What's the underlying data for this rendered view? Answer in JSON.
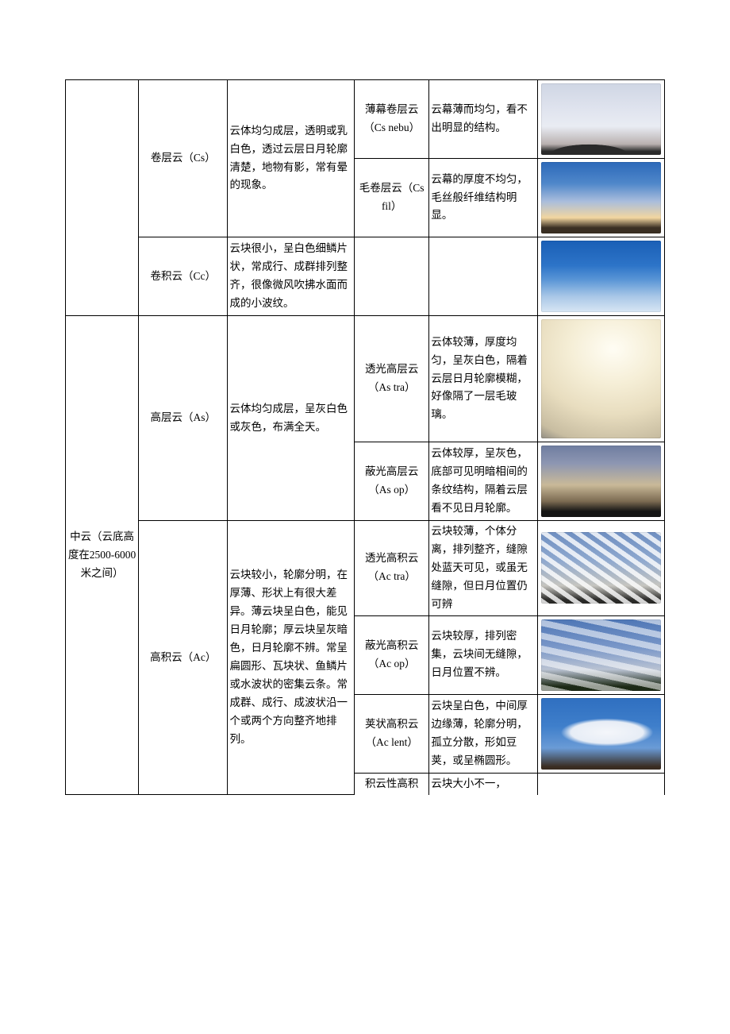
{
  "category_mid": "中云（云底高度在2500-6000米之间）",
  "rows": [
    {
      "type": "卷层云（Cs）",
      "type_desc": "云体均匀成层，透明或乳白色，透过云层日月轮廓清楚，地物有影，常有晕的现象。",
      "sub": "薄幕卷层云（Cs nebu）",
      "sub_desc": "云幕薄而均匀，看不出明显的结构。",
      "img_class": "sky-cs-nebu mtn"
    },
    {
      "sub": "毛卷层云（Cs fil）",
      "sub_desc": "云幕的厚度不均匀，毛丝般纤维结构明显。",
      "img_class": "sky-cs-fil"
    },
    {
      "type": "卷积云（Cc）",
      "type_desc": "云块很小，呈白色细鳞片状，常成行、成群排列整齐，很像微风吹拂水面而成的小波纹。",
      "sub": "",
      "sub_desc": "",
      "img_class": "sky-cc"
    },
    {
      "type": "高层云（As）",
      "type_desc": "云体均匀成层，呈灰白色或灰色，布满全天。",
      "sub": "透光高层云（As tra）",
      "sub_desc": "云体较薄，厚度均匀，呈灰白色，隔着云层日月轮廓模糊，好像隔了一层毛玻璃。",
      "img_class": "sky-as-tra",
      "tall": true
    },
    {
      "sub": "蔽光高层云（As op）",
      "sub_desc": "云体较厚，呈灰色，底部可见明暗相间的条纹结构，隔着云层看不见日月轮廓。",
      "img_class": "sky-as-op"
    },
    {
      "type": "高积云（Ac）",
      "type_desc": "云块较小，轮廓分明，在厚薄、形状上有很大差异。薄云块呈白色，能见日月轮廓；厚云块呈灰暗色，日月轮廓不辨。常呈扁圆形、瓦块状、鱼鳞片或水波状的密集云条。常成群、成行、成波状沿一个或两个方向整齐地排列。",
      "sub": "透光高积云（Ac tra）",
      "sub_desc": "云块较薄，个体分离，排列整齐，缝隙处蓝天可见，或虽无缝隙，但日月位置仍可辨",
      "img_class": "sky-ac-tra"
    },
    {
      "sub": "蔽光高积云（Ac op）",
      "sub_desc": "云块较厚，排列密集，云块间无缝隙，日月位置不辨。",
      "img_class": "sky-ac-op"
    },
    {
      "sub": "荚状高积云（Ac lent）",
      "sub_desc": "云块呈白色，中间厚边缘薄，轮廓分明，孤立分散，形如豆荚，或呈椭圆形。",
      "img_class": "sky-ac-lent"
    },
    {
      "sub": "积云性高积",
      "sub_desc": "云块大小不一，",
      "partial": true
    }
  ]
}
